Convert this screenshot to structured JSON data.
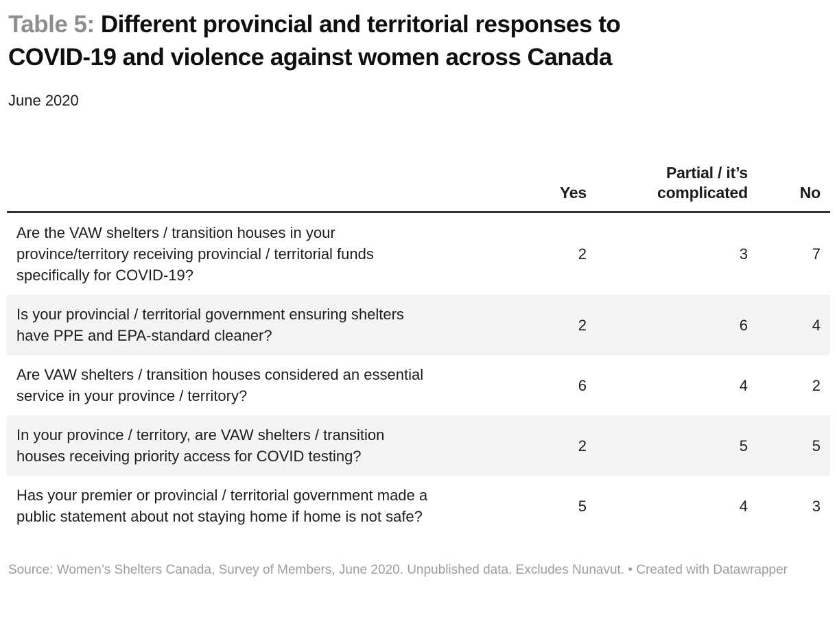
{
  "header": {
    "title_prefix": "Table 5:",
    "title_line1": "Different provincial and territorial responses to",
    "title_line2": "COVID-19 and violence against women across Canada",
    "subtitle": "June 2020"
  },
  "chart_data": {
    "type": "table",
    "title": "Table 5: Different provincial and territorial responses to COVID-19 and violence against women across Canada",
    "subtitle": "June 2020",
    "columns": [
      "",
      "Yes",
      "Partial / it’s complicated",
      "No"
    ],
    "rows": [
      {
        "question": "Are the VAW shelters / transition houses in your province/territory receiving provincial / territorial funds specifically for COVID-19?",
        "yes": 2,
        "partial": 3,
        "no": 7
      },
      {
        "question": "Is your provincial / territorial government ensuring shelters have PPE and EPA-standard cleaner?",
        "yes": 2,
        "partial": 6,
        "no": 4
      },
      {
        "question": "Are VAW shelters / transition houses considered an essential service in your province / territory?",
        "yes": 6,
        "partial": 4,
        "no": 2
      },
      {
        "question": "In your province / territory, are VAW shelters / transition houses receiving priority access for COVID testing?",
        "yes": 2,
        "partial": 5,
        "no": 5
      },
      {
        "question": "Has your premier or provincial / territorial government made a public statement about not staying home if home is not safe?",
        "yes": 5,
        "partial": 4,
        "no": 3
      }
    ]
  },
  "footer": {
    "source": "Source: Women’s Shelters Canada, Survey of Members, June 2020. Unpublished data. Excludes Nunavut.",
    "separator": "•",
    "attribution": "Created with Datawrapper"
  },
  "colors": {
    "title_prefix": "#8e8e8e",
    "title_text": "#0f0f0f",
    "body_text": "#1d1d1d",
    "header_rule": "#333333",
    "row_alt_bg": "#f4f4f4",
    "footer_text": "#9c9c9c",
    "background": "#ffffff"
  }
}
